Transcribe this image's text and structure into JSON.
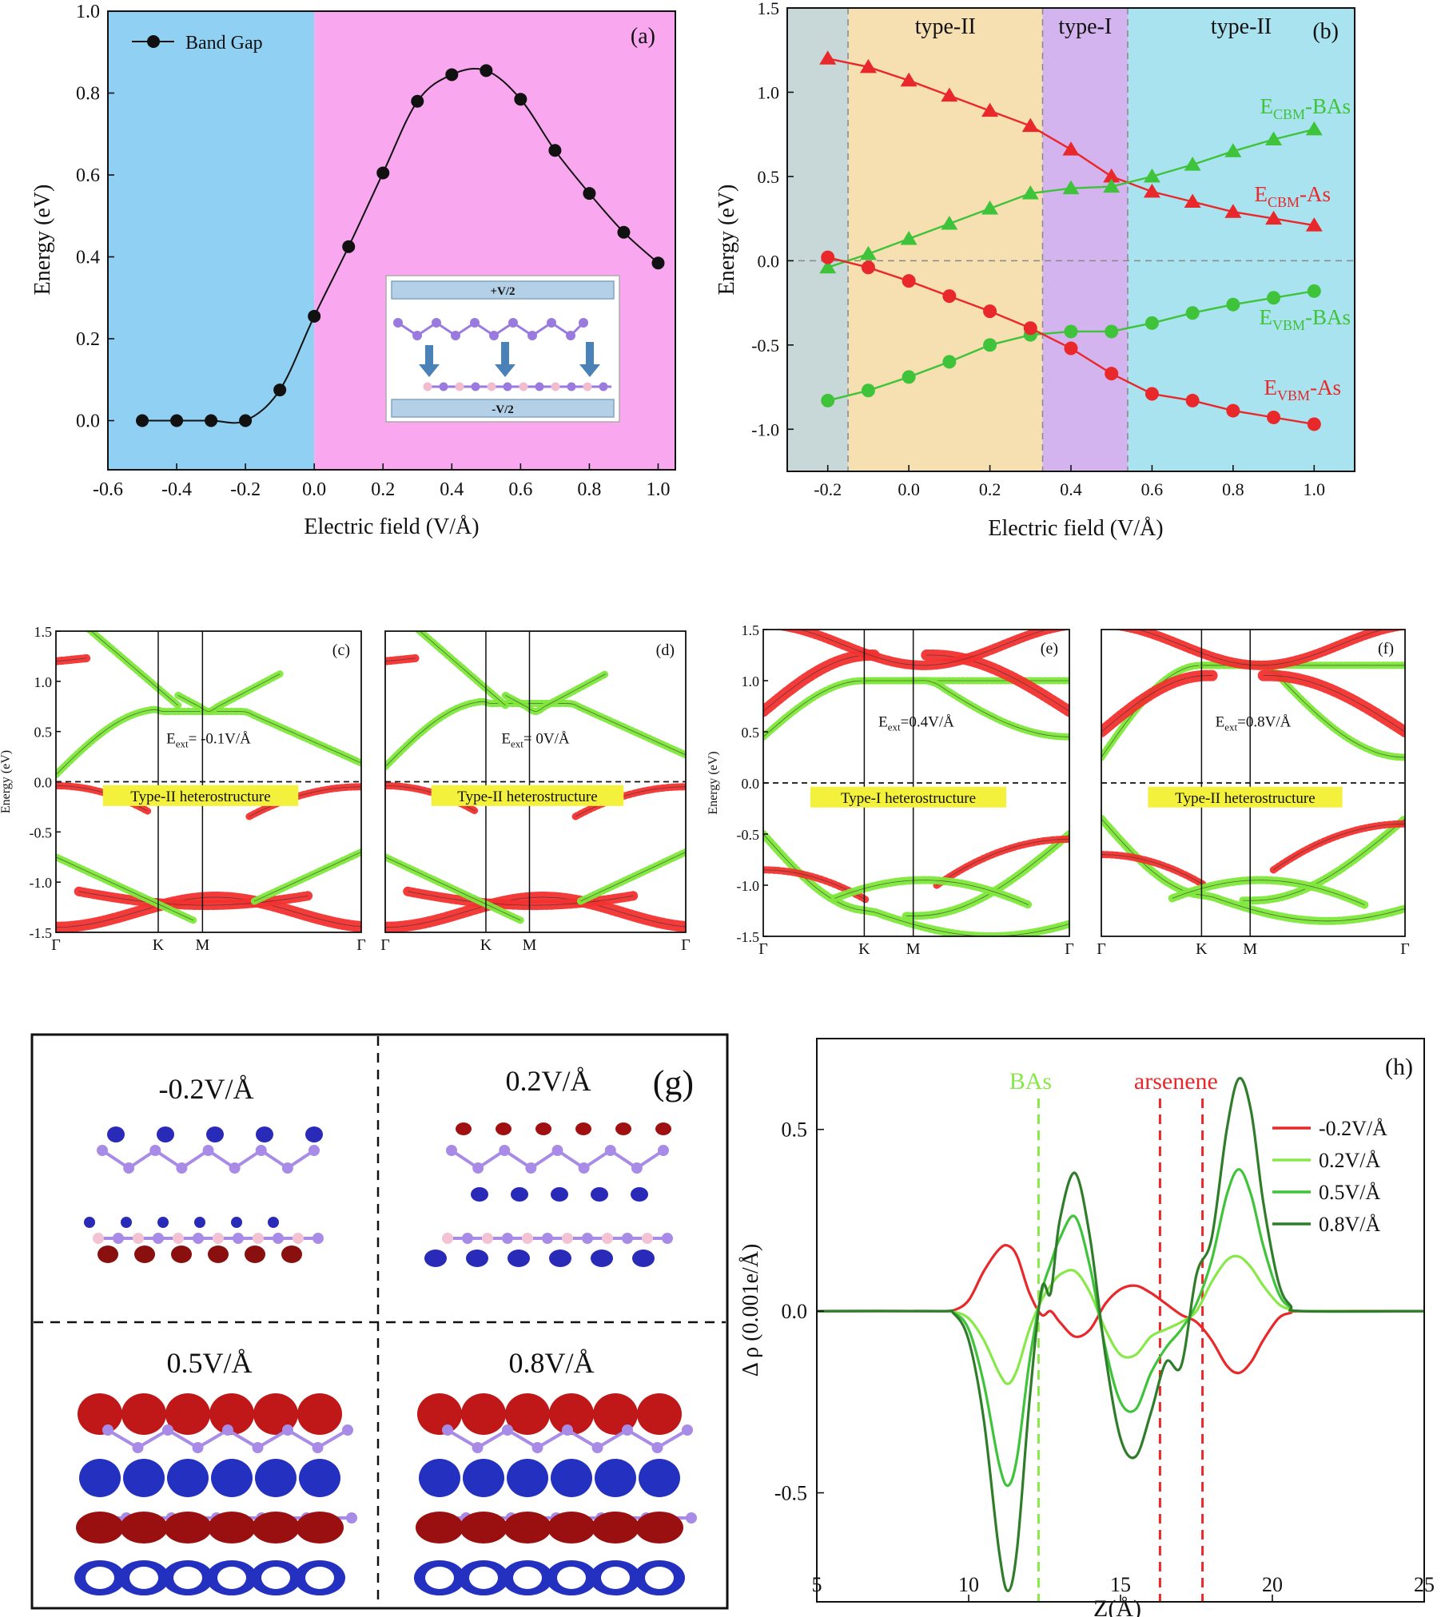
{
  "colors": {
    "blue_bg": "#8fd0f3",
    "pink_bg": "#f9a8f0",
    "grey_bg": "#c8d8d8",
    "tan_bg": "#f6dfb0",
    "violet_bg": "#d4b4ef",
    "cyan_bg": "#a9e3ef",
    "red": "#e8282a",
    "green": "#3ec33a",
    "lime": "#88e848",
    "dark_green": "#2f7d2a",
    "band_red": "#f2302e",
    "band_green": "#7ee83a"
  },
  "chart_data": [
    {
      "id": "a",
      "type": "line",
      "panel_label": "(a)",
      "xlabel": "Electric field (V/Å)",
      "ylabel": "Energy (eV)",
      "xlim": [
        -0.6,
        1.05
      ],
      "ylim": [
        -0.12,
        1.0
      ],
      "xticks": [
        "-0.6",
        "-0.4",
        "-0.2",
        "0.0",
        "0.2",
        "0.4",
        "0.6",
        "0.8",
        "1.0"
      ],
      "yticks": [
        "0.0",
        "0.2",
        "0.4",
        "0.6",
        "0.8",
        "1.0"
      ],
      "legend": "Band Gap",
      "legend_position": "top-left",
      "x": [
        -0.5,
        -0.4,
        -0.3,
        -0.2,
        -0.1,
        0.0,
        0.1,
        0.2,
        0.3,
        0.4,
        0.5,
        0.6,
        0.7,
        0.8,
        0.9,
        1.0
      ],
      "values": [
        0.0,
        0.0,
        0.0,
        0.0,
        0.075,
        0.255,
        0.425,
        0.605,
        0.78,
        0.845,
        0.855,
        0.785,
        0.66,
        0.555,
        0.46,
        0.385
      ],
      "regions": [
        {
          "from": -0.6,
          "to": 0.0,
          "color": "blue"
        },
        {
          "from": 0.0,
          "to": 1.05,
          "color": "pink"
        }
      ],
      "inset_top": "+V/2",
      "inset_bottom": "-V/2"
    },
    {
      "id": "b",
      "type": "line",
      "panel_label": "(b)",
      "xlabel": "Electric field (V/Å)",
      "ylabel": "Energy (eV)",
      "xlim": [
        -0.3,
        1.1
      ],
      "ylim": [
        -1.25,
        1.5
      ],
      "xticks": [
        "-0.2",
        "0.0",
        "0.2",
        "0.4",
        "0.6",
        "0.8",
        "1.0"
      ],
      "yticks": [
        "-1.0",
        "-0.5",
        "0.0",
        "0.5",
        "1.0",
        "1.5"
      ],
      "regions": [
        {
          "from": -0.3,
          "to": -0.15,
          "label": ""
        },
        {
          "from": -0.15,
          "to": 0.33,
          "label": "type-II"
        },
        {
          "from": 0.33,
          "to": 0.54,
          "label": "type-I"
        },
        {
          "from": 0.54,
          "to": 1.1,
          "label": "type-II"
        }
      ],
      "x": [
        -0.2,
        -0.1,
        0.0,
        0.1,
        0.2,
        0.3,
        0.4,
        0.5,
        0.6,
        0.7,
        0.8,
        0.9,
        1.0
      ],
      "series": [
        {
          "name": "E",
          "sub": "CBM",
          "suffix": "-As",
          "marker": "triangle",
          "color": "red",
          "values": [
            1.2,
            1.15,
            1.07,
            0.98,
            0.89,
            0.8,
            0.66,
            0.5,
            0.41,
            0.35,
            0.29,
            0.25,
            0.21
          ]
        },
        {
          "name": "E",
          "sub": "CBM",
          "suffix": "-BAs",
          "marker": "triangle",
          "color": "green",
          "values": [
            -0.04,
            0.04,
            0.13,
            0.22,
            0.31,
            0.4,
            0.43,
            0.44,
            0.5,
            0.57,
            0.65,
            0.72,
            0.78
          ]
        },
        {
          "name": "E",
          "sub": "VBM",
          "suffix": "-BAs",
          "marker": "circle",
          "color": "green",
          "values": [
            -0.83,
            -0.77,
            -0.69,
            -0.6,
            -0.5,
            -0.44,
            -0.42,
            -0.42,
            -0.37,
            -0.31,
            -0.26,
            -0.22,
            -0.18
          ]
        },
        {
          "name": "E",
          "sub": "VBM",
          "suffix": "-As",
          "marker": "circle",
          "color": "red",
          "values": [
            0.02,
            -0.04,
            -0.12,
            -0.21,
            -0.3,
            -0.4,
            -0.52,
            -0.67,
            -0.79,
            -0.83,
            -0.89,
            -0.93,
            -0.97
          ]
        }
      ]
    },
    {
      "id": "c",
      "type": "band_structure",
      "panel_label": "(c)",
      "ylabel": "Energy (eV)",
      "ylim": [
        -1.5,
        1.5
      ],
      "yticks": [
        "-1.5",
        "-1.0",
        "-0.5",
        "0.0",
        "0.5",
        "1.0",
        "1.5"
      ],
      "kpoints": [
        "Γ",
        "K",
        "M",
        "Γ"
      ],
      "field_prefix": "E",
      "field_sub": "ext",
      "field_value": "= -0.1V/Å",
      "type_label": "Type-II   heterostructure"
    },
    {
      "id": "d",
      "type": "band_structure",
      "panel_label": "(d)",
      "ylim": [
        -1.5,
        1.5
      ],
      "kpoints": [
        "Γ",
        "K",
        "M",
        "Γ"
      ],
      "field_prefix": "E",
      "field_sub": "ext",
      "field_value": "= 0V/Å",
      "type_label": "Type-II   heterostructure"
    },
    {
      "id": "e",
      "type": "band_structure",
      "panel_label": "(e)",
      "ylabel": "Energy (eV)",
      "ylim": [
        -1.5,
        1.5
      ],
      "yticks": [
        "-1.5",
        "-1.0",
        "-0.5",
        "0.0",
        "0.5",
        "1.0",
        "1.5"
      ],
      "kpoints": [
        "Γ",
        "K",
        "M",
        "Γ"
      ],
      "field_prefix": "E",
      "field_sub": "ext",
      "field_value": "=0.4V/Å",
      "type_label": "Type-I    heterostructure"
    },
    {
      "id": "f",
      "type": "band_structure",
      "panel_label": "(f)",
      "ylim": [
        -1.5,
        1.5
      ],
      "kpoints": [
        "Γ",
        "K",
        "M",
        "Γ"
      ],
      "field_prefix": "E",
      "field_sub": "ext",
      "field_value": "=0.8V/Å",
      "type_label": "Type-II  heterostructure"
    },
    {
      "id": "g",
      "type": "image_grid",
      "panel_label": "(g)",
      "cells": [
        "-0.2V/Å",
        "0.2V/Å",
        "0.5V/Å",
        "0.8V/Å"
      ]
    },
    {
      "id": "h",
      "type": "line",
      "panel_label": "(h)",
      "xlabel": "Z(Å)",
      "ylabel": "Δ ρ (0.001e/Å)",
      "xlim": [
        5,
        25
      ],
      "ylim": [
        -0.8,
        0.75
      ],
      "xticks": [
        "5",
        "10",
        "15",
        "20",
        "25"
      ],
      "yticks": [
        "-0.5",
        "0.0",
        "0.5"
      ],
      "vlines": [
        {
          "x": 12.3,
          "label": "BAs",
          "color": "lime"
        },
        {
          "x": 16.3,
          "label": "arsenene",
          "color": "red"
        },
        {
          "x": 17.7,
          "label": "",
          "color": "red"
        }
      ],
      "legend_position": "top-right",
      "x": [
        5,
        9,
        9.5,
        10,
        10.5,
        11,
        11.3,
        11.6,
        12,
        12.4,
        12.7,
        13,
        13.5,
        14,
        14.5,
        15,
        15.5,
        16,
        16.5,
        17,
        17.5,
        18,
        18.5,
        18.9,
        19.3,
        19.7,
        20.2,
        20.6,
        21,
        25
      ],
      "series": [
        {
          "name": "-0.2V/Å",
          "color": "red",
          "values": [
            0,
            0,
            0.002,
            0.03,
            0.11,
            0.17,
            0.18,
            0.15,
            0.05,
            -0.01,
            0.0,
            -0.03,
            -0.07,
            -0.05,
            0.02,
            0.06,
            0.07,
            0.05,
            0.02,
            -0.01,
            -0.03,
            -0.08,
            -0.15,
            -0.17,
            -0.14,
            -0.08,
            -0.02,
            -0.005,
            0,
            0
          ]
        },
        {
          "name": "0.2V/Å",
          "color": "lime",
          "values": [
            0,
            0,
            -0.002,
            -0.02,
            -0.08,
            -0.17,
            -0.2,
            -0.16,
            -0.05,
            0.03,
            0.07,
            0.1,
            0.11,
            0.05,
            -0.05,
            -0.12,
            -0.12,
            -0.07,
            -0.05,
            -0.03,
            0.0,
            0.08,
            0.14,
            0.15,
            0.12,
            0.07,
            0.02,
            0.005,
            0,
            0
          ]
        },
        {
          "name": "0.5V/Å",
          "color": "green",
          "values": [
            0,
            0,
            -0.004,
            -0.05,
            -0.2,
            -0.42,
            -0.48,
            -0.4,
            -0.14,
            0.05,
            0.13,
            0.2,
            0.26,
            0.12,
            -0.1,
            -0.25,
            -0.27,
            -0.17,
            -0.1,
            -0.05,
            0.02,
            0.14,
            0.32,
            0.39,
            0.32,
            0.18,
            0.05,
            0.01,
            0,
            0
          ]
        },
        {
          "name": "0.8V/Å",
          "color": "dark_green",
          "values": [
            0,
            0,
            -0.006,
            -0.08,
            -0.3,
            -0.66,
            -0.77,
            -0.65,
            -0.25,
            0.06,
            0.05,
            0.25,
            0.38,
            0.2,
            -0.12,
            -0.35,
            -0.4,
            -0.28,
            -0.14,
            -0.15,
            0.1,
            0.2,
            0.5,
            0.64,
            0.55,
            0.3,
            0.08,
            0.015,
            0,
            0
          ]
        }
      ]
    }
  ]
}
